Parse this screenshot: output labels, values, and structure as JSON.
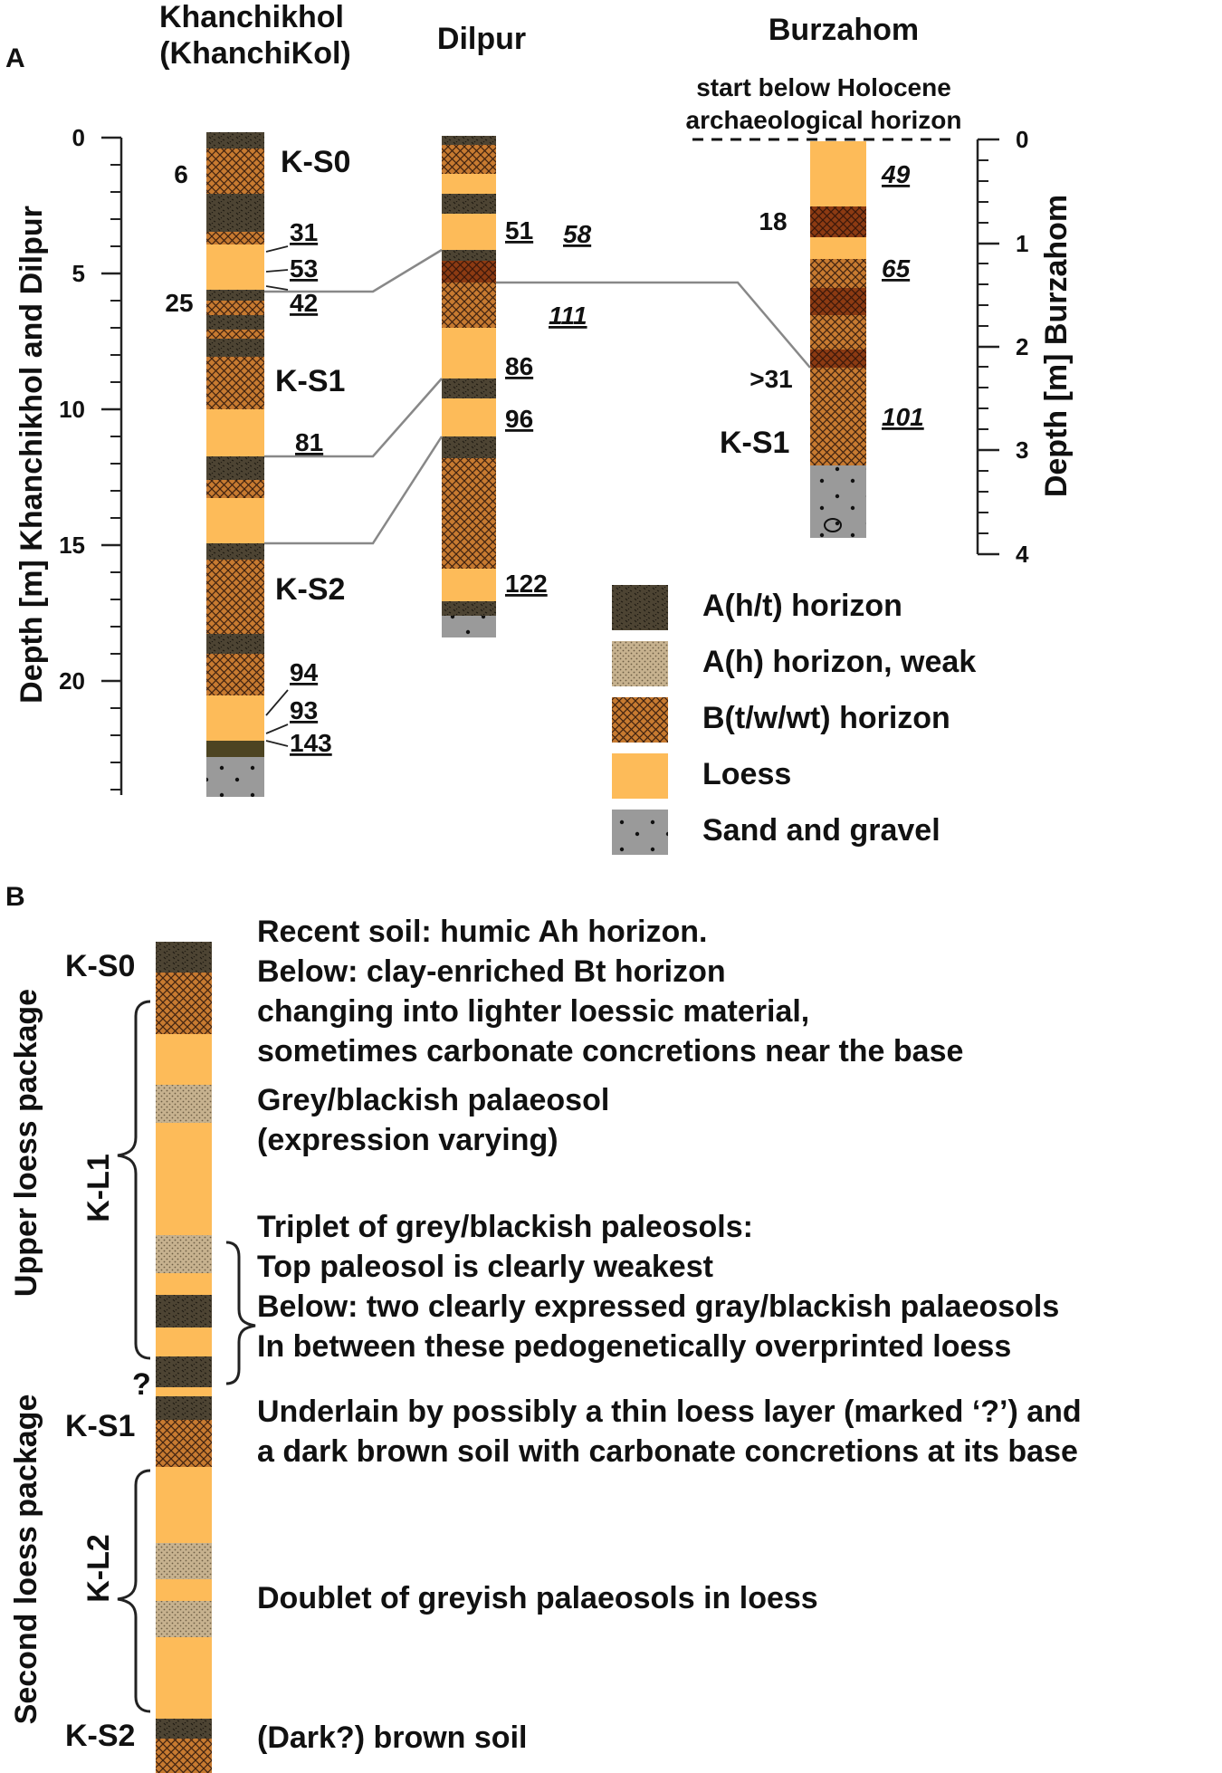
{
  "panel_a": {
    "tag": "A",
    "profiles": {
      "khanchikhol": {
        "title_line1": "Khanchikhol",
        "title_line2": "(KhanchiKol)"
      },
      "dilpur": {
        "title": "Dilpur"
      },
      "burzahom": {
        "title": "Burzahom",
        "note_line1": "start below Holocene",
        "note_line2": "archaeological horizon"
      }
    },
    "left_axis": {
      "label": "Depth [m] Khanchikhol and Dilpur",
      "ticks": [
        "0",
        "5",
        "10",
        "15",
        "20"
      ]
    },
    "right_axis": {
      "label": "Depth [m] Burzahom",
      "ticks": [
        "0",
        "1",
        "2",
        "3",
        "4"
      ]
    },
    "soil_labels": {
      "ks0": "K-S0",
      "ks1": "K-S1",
      "ks2": "K-S2",
      "ks1_burzahom": "K-S1"
    },
    "numbers_plain": {
      "k6": "6",
      "k25": "25",
      "b18": "18",
      "b31": ">31"
    },
    "numbers_underlined": {
      "k31": "31",
      "k53": "53",
      "k42": "42",
      "k81": "81",
      "k94": "94",
      "k93": "93",
      "k143": "143",
      "d51": "51",
      "d86": "86",
      "d96": "96",
      "d122": "122"
    },
    "numbers_italic": {
      "d58": "58",
      "d111": "111",
      "b49": "49",
      "b65": "65",
      "b101": "101"
    },
    "legend": {
      "ah_t": "A(h/t) horizon",
      "ah_weak": "A(h) horizon, weak",
      "bt": "B(t/w/wt) horizon",
      "loess": "Loess",
      "sand": "Sand and gravel"
    }
  },
  "panel_b": {
    "tag": "B",
    "soil_labels": {
      "ks0": "K-S0",
      "ks1": "K-S1",
      "ks2": "K-S2",
      "q": "?"
    },
    "brace_labels": {
      "kl1": "K-L1",
      "kl2": "K-L2"
    },
    "package_labels": {
      "upper": "Upper loess package",
      "second": "Second loess package"
    },
    "descriptions": {
      "d1": "Recent soil: humic Ah horizon.",
      "d2": "Below: clay-enriched Bt horizon",
      "d3": "changing into lighter loessic material,",
      "d4": "sometimes carbonate concretions near the base",
      "d5": "Grey/blackish palaeosol",
      "d6": "(expression varying)",
      "d7": "Triplet of grey/blackish paleosols:",
      "d8": "Top paleosol is clearly weakest",
      "d9": "Below: two clearly expressed gray/blackish palaeosols",
      "d10": "In between these pedogenetically overprinted loess",
      "d11": "Underlain by possibly a thin loess layer (marked ‘?’) and",
      "d12": "a dark brown soil with carbonate concretions at its base",
      "d13": "Doublet of greyish palaeosols in loess",
      "d14": "(Dark?) brown soil"
    }
  },
  "colors": {
    "loess": "#fdbb59",
    "bt": "#c77a30",
    "bt_dark": "#8c3a12",
    "ah_t": "#4d4433",
    "ah_weak": "#c7b28f",
    "sand": "#9a9a9a",
    "axis": "#222222",
    "correlation": "#888888"
  }
}
